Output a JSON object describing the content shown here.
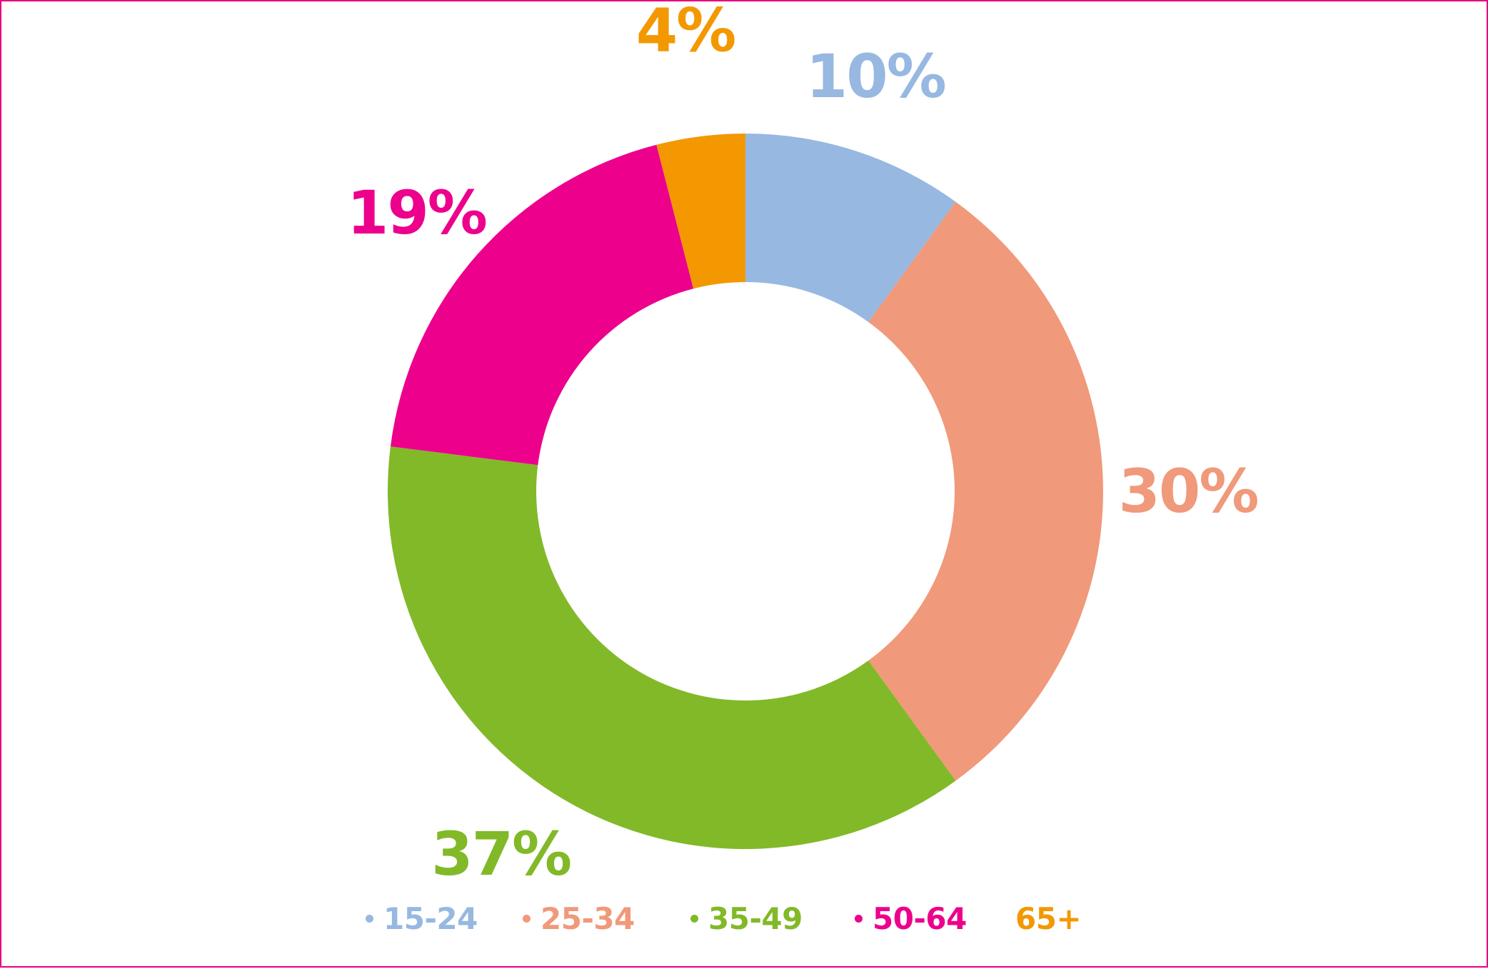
{
  "chart_data": {
    "type": "pie",
    "donut": true,
    "title": "",
    "categories": [
      "15-24",
      "25-34",
      "35-49",
      "50-64",
      "65+"
    ],
    "values": [
      10,
      30,
      37,
      19,
      4
    ],
    "value_labels": [
      "10%",
      "30%",
      "37%",
      "19%",
      "4%"
    ],
    "unit": "%",
    "colors": [
      "#97b8e0",
      "#f0997b",
      "#82b928",
      "#ec008c",
      "#f39800"
    ],
    "legend_placement": "bottom",
    "legend_markers": [
      true,
      true,
      true,
      true,
      false
    ],
    "start_angle": "12 o'clock, clockwise"
  }
}
